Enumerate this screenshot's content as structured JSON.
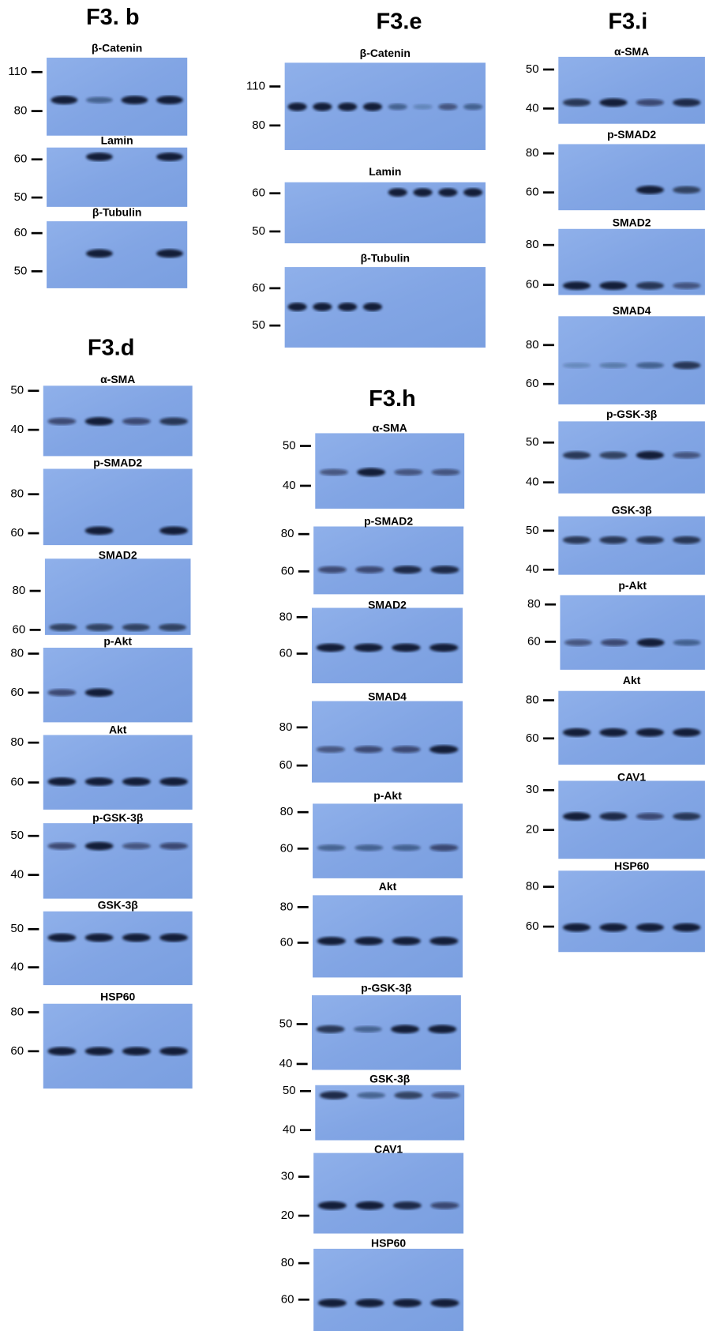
{
  "panels": [
    {
      "title": "F3. b",
      "blots": [
        {
          "protein": "β-Catenin",
          "markers": [
            110,
            80
          ]
        },
        {
          "protein": "Lamin",
          "markers": [
            60,
            50
          ]
        },
        {
          "protein": "β-Tubulin",
          "markers": [
            60,
            50
          ]
        }
      ]
    },
    {
      "title": "F3.d",
      "blots": [
        {
          "protein": "α-SMA",
          "markers": [
            50,
            40
          ]
        },
        {
          "protein": "p-SMAD2",
          "markers": [
            80,
            60
          ]
        },
        {
          "protein": "SMAD2",
          "markers": [
            80,
            60
          ]
        },
        {
          "protein": "p-Akt",
          "markers": [
            80,
            60
          ]
        },
        {
          "protein": "Akt",
          "markers": [
            80,
            60
          ]
        },
        {
          "protein": "p-GSK-3β",
          "markers": [
            50,
            40
          ]
        },
        {
          "protein": "GSK-3β",
          "markers": [
            50,
            40
          ]
        },
        {
          "protein": "HSP60",
          "markers": [
            80,
            60
          ]
        }
      ]
    },
    {
      "title": "F3.e",
      "blots": [
        {
          "protein": "β-Catenin",
          "markers": [
            110,
            80
          ]
        },
        {
          "protein": "Lamin",
          "markers": [
            60,
            50
          ]
        },
        {
          "protein": "β-Tubulin",
          "markers": [
            60,
            50
          ]
        }
      ]
    },
    {
      "title": "F3.h",
      "blots": [
        {
          "protein": "α-SMA",
          "markers": [
            50,
            40
          ]
        },
        {
          "protein": "p-SMAD2",
          "markers": [
            80,
            60
          ]
        },
        {
          "protein": "SMAD2",
          "markers": [
            80,
            60
          ]
        },
        {
          "protein": "SMAD4",
          "markers": [
            80,
            60
          ]
        },
        {
          "protein": "p-Akt",
          "markers": [
            80,
            60
          ]
        },
        {
          "protein": "Akt",
          "markers": [
            80,
            60
          ]
        },
        {
          "protein": "p-GSK-3β",
          "markers": [
            50,
            40
          ]
        },
        {
          "protein": "GSK-3β",
          "markers": [
            50,
            40
          ]
        },
        {
          "protein": "CAV1",
          "markers": [
            30,
            20
          ]
        },
        {
          "protein": "HSP60",
          "markers": [
            80,
            60
          ]
        }
      ]
    },
    {
      "title": "F3.i",
      "blots": [
        {
          "protein": "α-SMA",
          "markers": [
            50,
            40
          ]
        },
        {
          "protein": "p-SMAD2",
          "markers": [
            80,
            60
          ]
        },
        {
          "protein": "SMAD2",
          "markers": [
            80,
            60
          ]
        },
        {
          "protein": "SMAD4",
          "markers": [
            80,
            60
          ]
        },
        {
          "protein": "p-GSK-3β",
          "markers": [
            50,
            40
          ]
        },
        {
          "protein": "GSK-3β",
          "markers": [
            50,
            40
          ]
        },
        {
          "protein": "p-Akt",
          "markers": [
            80,
            60
          ]
        },
        {
          "protein": "Akt",
          "markers": [
            80,
            60
          ]
        },
        {
          "protein": "CAV1",
          "markers": [
            30,
            20
          ]
        },
        {
          "protein": "HSP60",
          "markers": [
            80,
            60
          ]
        }
      ]
    }
  ]
}
